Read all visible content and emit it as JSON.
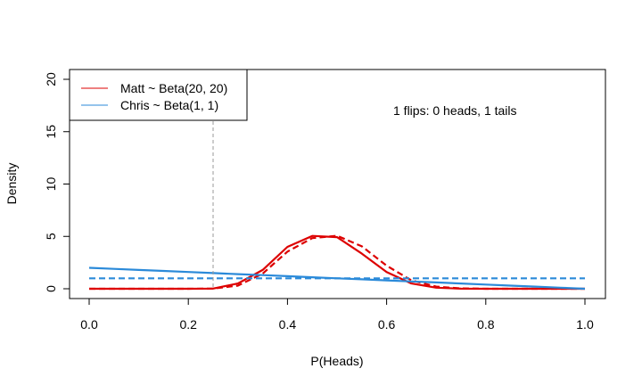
{
  "chart_data": {
    "type": "line",
    "title": "",
    "xlabel": "P(Heads)",
    "ylabel": "Density",
    "xlim": [
      0,
      1
    ],
    "ylim": [
      0,
      20
    ],
    "x_ticks": [
      "0.0",
      "0.2",
      "0.4",
      "0.6",
      "0.8",
      "1.0"
    ],
    "y_ticks": [
      "0",
      "5",
      "10",
      "15",
      "20"
    ],
    "grid": false,
    "legend_position": "top-left",
    "annotation": "1 flips: 0 heads, 1 tails",
    "reference_line": {
      "x": 0.25,
      "style": "dashed",
      "color": "#999999"
    },
    "legend": [
      {
        "label": "Matt ~ Beta(20, 20)",
        "color": "#dd0000"
      },
      {
        "label": "Chris ~ Beta(1, 1)",
        "color": "#2b8ad9"
      }
    ],
    "x": [
      0.0,
      0.05,
      0.1,
      0.15,
      0.2,
      0.25,
      0.3,
      0.35,
      0.4,
      0.45,
      0.5,
      0.55,
      0.6,
      0.65,
      0.7,
      0.75,
      0.8,
      0.85,
      0.9,
      0.95,
      1.0
    ],
    "series": [
      {
        "color": "#dd0000",
        "style": "dashed",
        "values": [
          0.0,
          0.0,
          0.0,
          0.0,
          0.0,
          0.02,
          0.3,
          1.45,
          3.55,
          4.83,
          5.06,
          4.05,
          2.2,
          0.8,
          0.2,
          0.03,
          0.0,
          0.0,
          0.0,
          0.0,
          0.0
        ]
      },
      {
        "color": "#dd0000",
        "style": "solid",
        "values": [
          0.0,
          0.0,
          0.0,
          0.0,
          0.0,
          0.02,
          0.5,
          1.8,
          4.0,
          5.05,
          4.93,
          3.35,
          1.6,
          0.5,
          0.1,
          0.01,
          0.0,
          0.0,
          0.0,
          0.0,
          0.0
        ]
      },
      {
        "color": "#2b8ad9",
        "style": "dashed",
        "values": [
          1.0,
          1.0,
          1.0,
          1.0,
          1.0,
          1.0,
          1.0,
          1.0,
          1.0,
          1.0,
          1.0,
          1.0,
          1.0,
          1.0,
          1.0,
          1.0,
          1.0,
          1.0,
          1.0,
          1.0,
          1.0
        ]
      },
      {
        "color": "#2b8ad9",
        "style": "solid",
        "values": [
          2.0,
          1.9,
          1.8,
          1.7,
          1.6,
          1.5,
          1.4,
          1.3,
          1.2,
          1.1,
          1.0,
          0.9,
          0.8,
          0.7,
          0.6,
          0.5,
          0.4,
          0.3,
          0.2,
          0.1,
          0.0
        ]
      }
    ]
  }
}
